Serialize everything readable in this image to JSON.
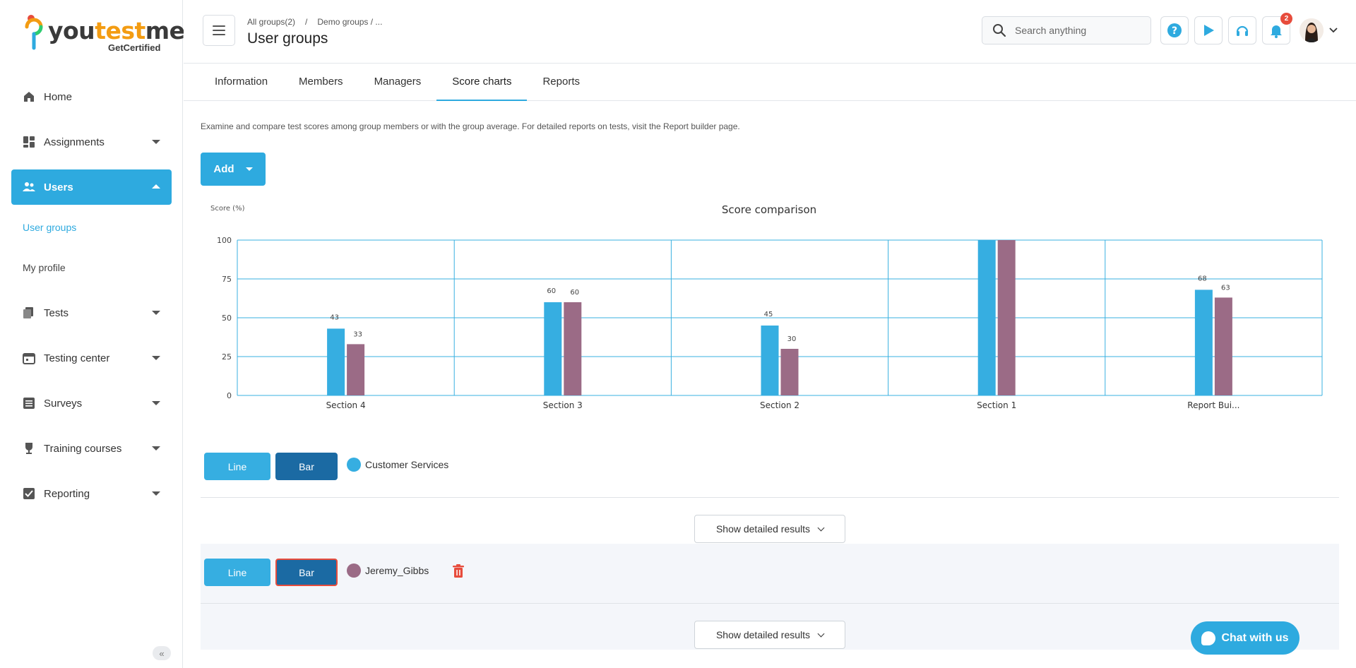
{
  "brand": {
    "logo_you": "you",
    "logo_test": "test",
    "logo_me": "me",
    "tagline": "GetCertified"
  },
  "sidebar": {
    "items": [
      {
        "label": "Home",
        "icon": "home-icon"
      },
      {
        "label": "Assignments",
        "icon": "dashboard-icon"
      },
      {
        "label": "Users",
        "icon": "users-icon"
      },
      {
        "label": "Tests",
        "icon": "tests-icon"
      },
      {
        "label": "Testing center",
        "icon": "calendar-icon"
      },
      {
        "label": "Surveys",
        "icon": "list-icon"
      },
      {
        "label": "Training courses",
        "icon": "trophy-icon"
      },
      {
        "label": "Reporting",
        "icon": "report-icon"
      }
    ],
    "sub_items": [
      "User groups",
      "My profile"
    ],
    "collapse_glyph": "«"
  },
  "header": {
    "breadcrumb": [
      "All groups(2)",
      "/",
      "Demo groups / ..."
    ],
    "title": "User groups",
    "search_placeholder": "Search anything",
    "notification_count": "2"
  },
  "tabs": [
    "Information",
    "Members",
    "Managers",
    "Score charts",
    "Reports"
  ],
  "content": {
    "description": "Examine and compare test scores among group members or with the group average. For detailed reports on tests, visit the Report builder page.",
    "add_label": "Add"
  },
  "chart_data": {
    "type": "bar",
    "title": "Score comparison",
    "ylabel": "Score (%)",
    "ylim": [
      0,
      100
    ],
    "yticks": [
      0,
      25,
      50,
      75,
      100
    ],
    "categories": [
      "Section 4",
      "Section 3",
      "Section 2",
      "Section 1",
      "Report Bui..."
    ],
    "series": [
      {
        "name": "Customer Services",
        "color": "#36aee1",
        "values": [
          43,
          60,
          45,
          100,
          68
        ],
        "labels": [
          "43",
          "60",
          "45",
          "",
          "68"
        ]
      },
      {
        "name": "Jeremy_Gibbs",
        "color": "#9b6b86",
        "values": [
          33,
          60,
          30,
          100,
          63
        ],
        "labels": [
          "33",
          "60",
          "30",
          "",
          "63"
        ]
      }
    ],
    "grid": true
  },
  "series_controls": [
    {
      "line_label": "Line",
      "bar_label": "Bar",
      "name": "Customer Services",
      "color": "#36aee1",
      "detail_label": "Show detailed results"
    },
    {
      "line_label": "Line",
      "bar_label": "Bar",
      "name": "Jeremy_Gibbs",
      "color": "#9b6b86",
      "detail_label": "Show detailed results"
    }
  ],
  "chat": {
    "label": "Chat with us"
  },
  "colors": {
    "accent": "#2eaadf",
    "bar_dark": "#1b6aa3",
    "danger": "#e74c3c"
  }
}
